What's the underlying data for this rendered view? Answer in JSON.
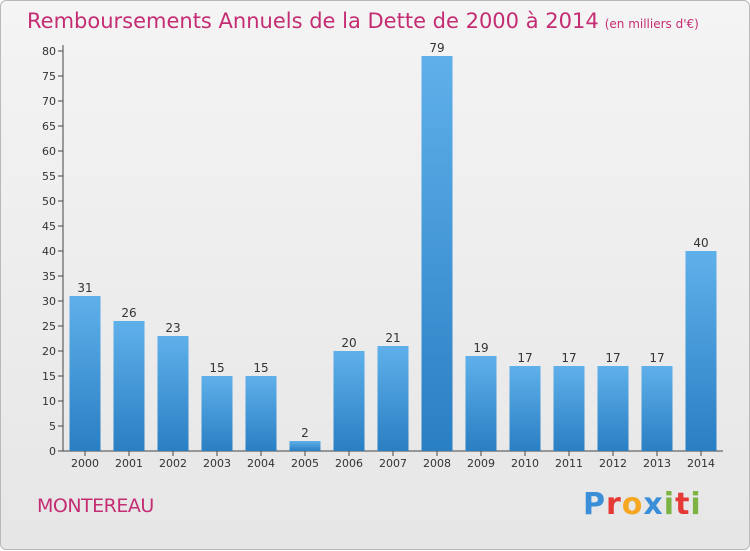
{
  "chart_data": {
    "type": "bar",
    "title": "Remboursements Annuels de la Dette de 2000 à 2014",
    "subtitle": "(en milliers d'€)",
    "categories": [
      "2000",
      "2001",
      "2002",
      "2003",
      "2004",
      "2005",
      "2006",
      "2007",
      "2008",
      "2009",
      "2010",
      "2011",
      "2012",
      "2013",
      "2014"
    ],
    "values": [
      31,
      26,
      23,
      15,
      15,
      2,
      20,
      21,
      79,
      19,
      17,
      17,
      17,
      17,
      40
    ],
    "ylim": [
      0,
      80
    ],
    "yticks": [
      0,
      5,
      10,
      15,
      20,
      25,
      30,
      35,
      40,
      45,
      50,
      55,
      60,
      65,
      70,
      75,
      80
    ],
    "grid": false,
    "data_labels": true
  },
  "commune": "MONTEREAU",
  "logo": {
    "text": "Proxiti",
    "colors": [
      "#3a8fd8",
      "#e53935",
      "#f5a623",
      "#3a8fd8",
      "#7cb342",
      "#e53935",
      "#7cb342"
    ]
  },
  "colors": {
    "bar_light": "#5fb0ea",
    "bar_dark": "#2a7fc3",
    "title": "#c42d73"
  }
}
